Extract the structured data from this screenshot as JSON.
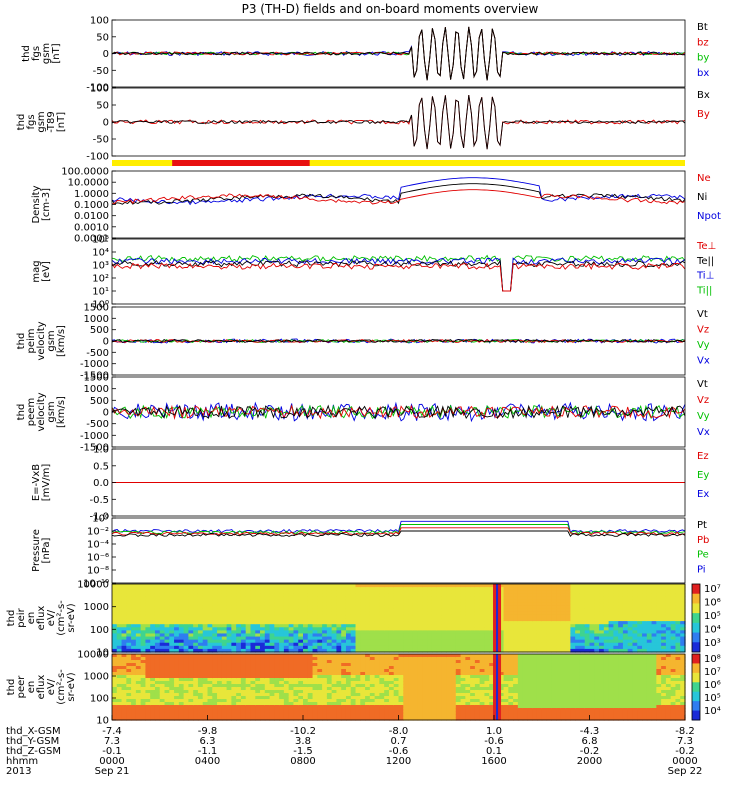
{
  "title": "P3 (TH-D) fields and on-board moments overview",
  "chart_data": [
    {
      "id": "fgs",
      "type": "line",
      "ylabel": [
        "thd",
        "fgs",
        "gsm",
        "[nT]"
      ],
      "ylim": [
        -100,
        100
      ],
      "yticks": [
        "100",
        "50",
        "0",
        "-50",
        "-100"
      ],
      "legend": [
        {
          "name": "Bt",
          "color": "#000000"
        },
        {
          "name": "bz",
          "color": "#e00000"
        },
        {
          "name": "by",
          "color": "#00c000"
        },
        {
          "name": "bx",
          "color": "#0000e0"
        }
      ]
    },
    {
      "id": "fgs-t89",
      "type": "line",
      "ylabel": [
        "thd",
        "fgs",
        "gsm",
        "-T89",
        "[nT]"
      ],
      "ylim": [
        -130,
        100
      ],
      "yticks": [
        "100",
        "50",
        "0",
        "-50",
        "-100"
      ],
      "legend": [
        {
          "name": "Bx",
          "color": "#000000"
        },
        {
          "name": "By",
          "color": "#e00000"
        }
      ]
    },
    {
      "id": "density",
      "type": "line",
      "ylabel": [
        "Density",
        "[cm-3]"
      ],
      "yscale": "log",
      "ylim": [
        0.0001,
        100
      ],
      "yticks": [
        "100.0000",
        "10.0000",
        "1.0000",
        "0.1000",
        "0.0100",
        "0.0010",
        "0.0001"
      ],
      "legend": [
        {
          "name": "Ne",
          "color": "#e00000"
        },
        {
          "name": "Ni",
          "color": "#000000"
        },
        {
          "name": "Npot",
          "color": "#0000e0"
        }
      ]
    },
    {
      "id": "temperature",
      "type": "line",
      "ylabel": [
        "mag",
        "[eV]"
      ],
      "yscale": "log",
      "ylim": [
        1,
        100000
      ],
      "yticks": [
        "10⁵",
        "10⁴",
        "10³",
        "10²",
        "10¹",
        "10⁰"
      ],
      "legend": [
        {
          "name": "Te⊥",
          "color": "#e00000"
        },
        {
          "name": "Te||",
          "color": "#000000"
        },
        {
          "name": "Ti⊥",
          "color": "#0000e0"
        },
        {
          "name": "Ti||",
          "color": "#00c000"
        }
      ]
    },
    {
      "id": "peim-velocity",
      "type": "line",
      "ylabel": [
        "thd",
        "peim",
        "velocity",
        "gsm",
        "[km/s]"
      ],
      "ylim": [
        -1500,
        1500
      ],
      "yticks": [
        "1500",
        "1000",
        "500",
        "0",
        "-500",
        "-1000",
        "-1500"
      ],
      "legend": [
        {
          "name": "Vt",
          "color": "#000000"
        },
        {
          "name": "Vz",
          "color": "#e00000"
        },
        {
          "name": "Vy",
          "color": "#00c000"
        },
        {
          "name": "Vx",
          "color": "#0000e0"
        }
      ]
    },
    {
      "id": "peem-velocity",
      "type": "line",
      "ylabel": [
        "thd",
        "peem",
        "velocity",
        "gsm",
        "[km/s]"
      ],
      "ylim": [
        -1500,
        1500
      ],
      "yticks": [
        "1500",
        "1000",
        "500",
        "0",
        "-500",
        "-1000",
        "-1500"
      ],
      "legend": [
        {
          "name": "Vt",
          "color": "#000000"
        },
        {
          "name": "Vz",
          "color": "#e00000"
        },
        {
          "name": "Vy",
          "color": "#00c000"
        },
        {
          "name": "Vx",
          "color": "#0000e0"
        }
      ]
    },
    {
      "id": "efield",
      "type": "line",
      "ylabel": [
        "E=-VxB",
        "[mV/m]"
      ],
      "ylim": [
        -1,
        1
      ],
      "yticks": [
        "1.0",
        "0.5",
        "0.0",
        "-0.5",
        "-1.0"
      ],
      "legend": [
        {
          "name": "Ez",
          "color": "#e00000"
        },
        {
          "name": "Ey",
          "color": "#00c000"
        },
        {
          "name": "Ex",
          "color": "#0000e0"
        }
      ]
    },
    {
      "id": "pressure",
      "type": "line",
      "ylabel": [
        "Pressure",
        "[nPa]"
      ],
      "yscale": "log",
      "ylim": [
        1e-10,
        1
      ],
      "yticks": [
        "10⁰",
        "10⁻²",
        "10⁻⁴",
        "10⁻⁶",
        "10⁻⁸",
        "10⁻¹⁰"
      ],
      "legend": [
        {
          "name": "Pt",
          "color": "#000000"
        },
        {
          "name": "Pb",
          "color": "#e00000"
        },
        {
          "name": "Pe",
          "color": "#00c000"
        },
        {
          "name": "Pi",
          "color": "#0000e0"
        }
      ]
    },
    {
      "id": "peir-spectrogram",
      "type": "heatmap",
      "ylabel": [
        "thd",
        "peir",
        "en",
        "eflux",
        "eV/",
        "(cm²-s-",
        "sr-eV)"
      ],
      "yscale": "log",
      "ylim": [
        10,
        20000
      ],
      "yticks": [
        "10000",
        "1000",
        "100",
        "10"
      ],
      "colorbar": [
        "10⁷",
        "10⁶",
        "10⁵",
        "10⁴",
        "10³"
      ]
    },
    {
      "id": "peer-spectrogram",
      "type": "heatmap",
      "ylabel": [
        "thd",
        "peer",
        "en",
        "eflux",
        "eV/",
        "(cm²-s-",
        "sr-eV)"
      ],
      "yscale": "log",
      "ylim": [
        10,
        20000
      ],
      "yticks": [
        "10000",
        "1000",
        "100",
        "10"
      ],
      "colorbar": [
        "10⁸",
        "10⁷",
        "10⁶",
        "10⁵",
        "10⁴"
      ]
    }
  ],
  "xaxis": {
    "row_labels": [
      "thd_X-GSM",
      "thd_Y-GSM",
      "thd_Z-GSM",
      "hhmm",
      "2013"
    ],
    "columns": [
      [
        "-7.4",
        "7.3",
        "-0.1",
        "0000",
        "Sep 21"
      ],
      [
        "-9.8",
        "6.3",
        "-1.1",
        "0400",
        ""
      ],
      [
        "-10.2",
        "3.8",
        "-1.5",
        "0800",
        ""
      ],
      [
        "-8.0",
        "0.7",
        "-0.6",
        "1200",
        ""
      ],
      [
        "1.0",
        "-0.6",
        "0.1",
        "1600",
        ""
      ],
      [
        "-4.3",
        "6.8",
        "-0.2",
        "2000",
        ""
      ],
      [
        "-8.2",
        "7.3",
        "-0.2",
        "0000",
        "Sep 22"
      ]
    ]
  }
}
